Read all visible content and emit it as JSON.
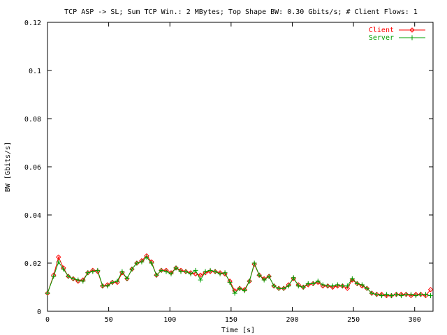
{
  "chart_data": {
    "type": "line",
    "title": "TCP ASP -> SL; Sum TCP Win.: 2 MBytes; Top Shape BW: 0.30 Gbits/s; # Client Flows: 1",
    "xlabel": "Time [s]",
    "ylabel": "BW [Gbits/s]",
    "xlim": [
      0,
      315
    ],
    "ylim": [
      0,
      0.12
    ],
    "xticks": [
      0,
      50,
      100,
      150,
      200,
      250,
      300
    ],
    "yticks": [
      0,
      0.02,
      0.04,
      0.06,
      0.08,
      0.1,
      0.12
    ],
    "ytick_labels": [
      "0",
      "0.02",
      "0.04",
      "0.06",
      "0.08",
      "0.1",
      "0.12"
    ],
    "grid": false,
    "legend_position": "top-right",
    "x": [
      0,
      5,
      9,
      13,
      17,
      21,
      25,
      29,
      33,
      37,
      41,
      45,
      49,
      53,
      57,
      61,
      65,
      69,
      73,
      77,
      81,
      85,
      89,
      93,
      97,
      101,
      105,
      109,
      113,
      117,
      121,
      125,
      129,
      133,
      137,
      141,
      145,
      149,
      153,
      157,
      161,
      165,
      169,
      173,
      177,
      181,
      185,
      189,
      193,
      197,
      201,
      205,
      209,
      213,
      217,
      221,
      225,
      229,
      233,
      237,
      241,
      245,
      249,
      253,
      257,
      261,
      265,
      269,
      273,
      277,
      281,
      285,
      289,
      293,
      297,
      301,
      305,
      309,
      313
    ],
    "series": [
      {
        "name": "Client",
        "color": "#ff0000",
        "marker": "diamond",
        "values": [
          0.0075,
          0.015,
          0.0225,
          0.018,
          0.0145,
          0.0135,
          0.0125,
          0.013,
          0.016,
          0.017,
          0.0165,
          0.0105,
          0.011,
          0.012,
          0.012,
          0.016,
          0.0135,
          0.0175,
          0.02,
          0.021,
          0.023,
          0.0205,
          0.015,
          0.017,
          0.017,
          0.016,
          0.018,
          0.017,
          0.0165,
          0.016,
          0.0155,
          0.015,
          0.016,
          0.0165,
          0.0165,
          0.016,
          0.0155,
          0.0125,
          0.0085,
          0.0095,
          0.009,
          0.0125,
          0.0195,
          0.015,
          0.0135,
          0.0145,
          0.0105,
          0.0095,
          0.0095,
          0.011,
          0.0135,
          0.011,
          0.01,
          0.011,
          0.0115,
          0.012,
          0.0105,
          0.0105,
          0.01,
          0.0105,
          0.0105,
          0.0095,
          0.013,
          0.0115,
          0.0105,
          0.0095,
          0.0075,
          0.007,
          0.007,
          0.0065,
          0.0065,
          0.007,
          0.007,
          0.007,
          0.0065,
          0.007,
          0.007,
          0.0065,
          0.009
        ]
      },
      {
        "name": "Server",
        "color": "#00a000",
        "marker": "plus",
        "values": [
          0.0075,
          0.0145,
          0.0205,
          0.0175,
          0.0145,
          0.0135,
          0.013,
          0.0125,
          0.016,
          0.0165,
          0.017,
          0.0105,
          0.0105,
          0.012,
          0.0125,
          0.0165,
          0.0135,
          0.0175,
          0.02,
          0.0205,
          0.0225,
          0.02,
          0.015,
          0.017,
          0.0165,
          0.0155,
          0.018,
          0.0165,
          0.0165,
          0.0155,
          0.017,
          0.013,
          0.0165,
          0.017,
          0.0165,
          0.0155,
          0.016,
          0.012,
          0.0075,
          0.0095,
          0.0085,
          0.0125,
          0.02,
          0.015,
          0.013,
          0.0145,
          0.0105,
          0.0095,
          0.0095,
          0.0105,
          0.014,
          0.0105,
          0.01,
          0.0115,
          0.0115,
          0.0125,
          0.011,
          0.0105,
          0.0105,
          0.011,
          0.0105,
          0.0105,
          0.0135,
          0.0115,
          0.011,
          0.0095,
          0.0075,
          0.007,
          0.0065,
          0.007,
          0.0065,
          0.007,
          0.0065,
          0.007,
          0.007,
          0.0065,
          0.007,
          0.007,
          0.0065
        ]
      }
    ]
  }
}
